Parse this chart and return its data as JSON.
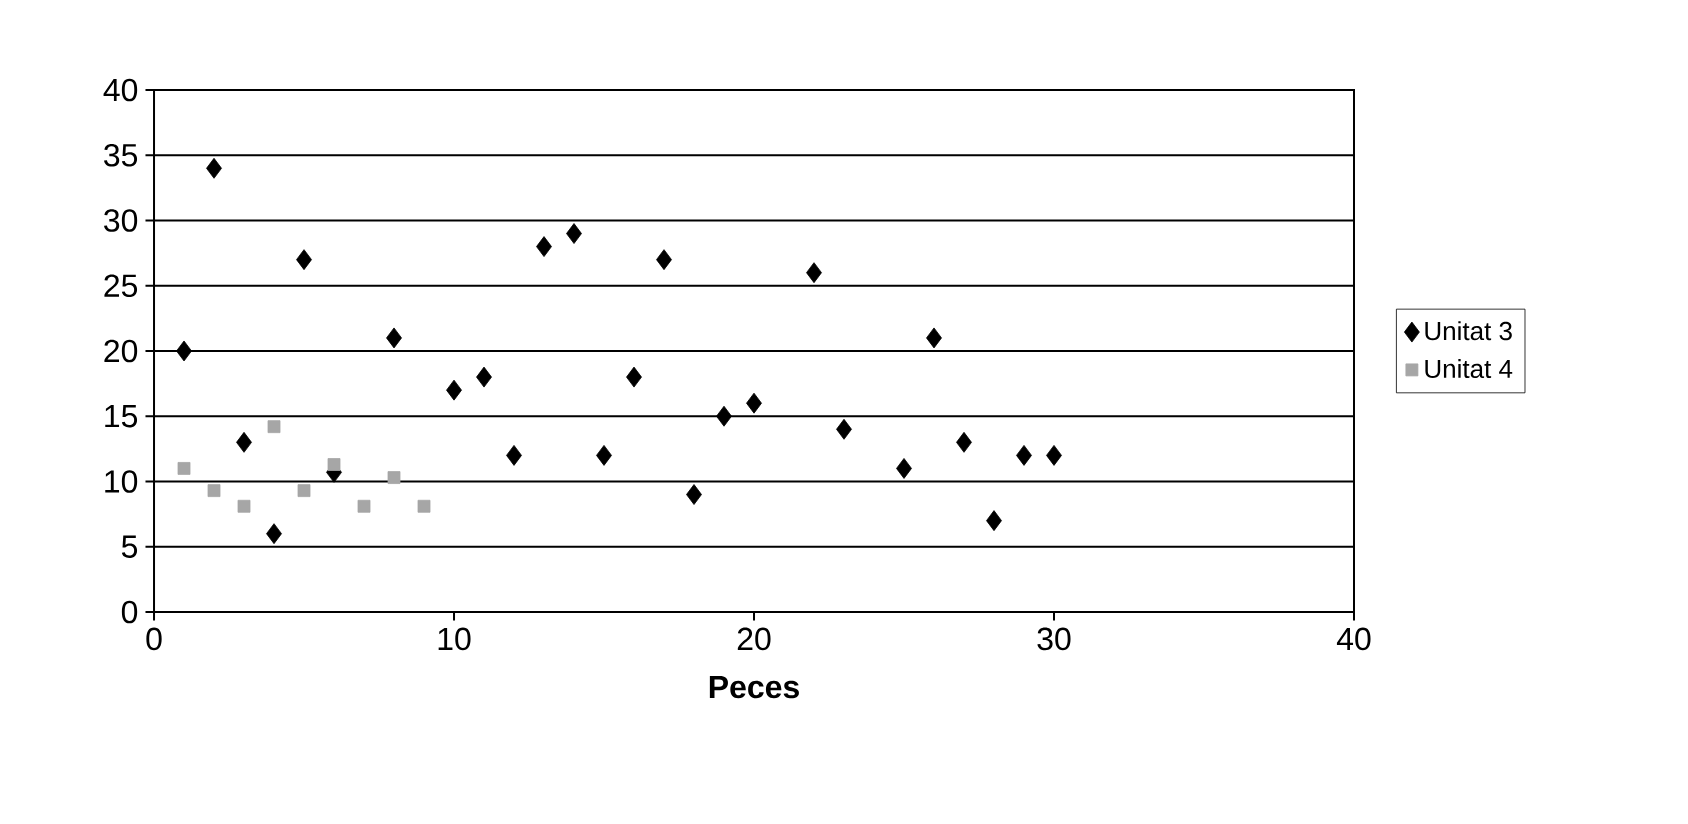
{
  "chart_data": {
    "type": "scatter",
    "xlabel": "Peces",
    "xlim": [
      0,
      40
    ],
    "xticks": [
      0,
      10,
      20,
      30,
      40
    ],
    "ylim": [
      0,
      40
    ],
    "yticks": [
      0,
      5,
      10,
      15,
      20,
      25,
      30,
      35,
      40
    ],
    "grid": "y",
    "legend": "right",
    "series": [
      {
        "name": "Unitat 3",
        "color": "#000000",
        "marker": "diamond",
        "x": [
          1,
          2,
          3,
          4,
          5,
          6,
          8,
          10,
          11,
          12,
          13,
          14,
          15,
          16,
          17,
          18,
          19,
          20,
          22,
          23,
          25,
          26,
          27,
          28,
          29,
          30
        ],
        "values": [
          20,
          34,
          13,
          6,
          27,
          10.7,
          21,
          17,
          18,
          12,
          28,
          29,
          12,
          18,
          27,
          9,
          15,
          16,
          26,
          14,
          11,
          21,
          13,
          7,
          12,
          12
        ]
      },
      {
        "name": "Unitat 4",
        "color": "#a6a6a6",
        "marker": "square",
        "x": [
          1,
          2,
          3,
          4,
          5,
          6,
          7,
          8,
          9
        ],
        "values": [
          11,
          9.3,
          8.1,
          14.2,
          9.3,
          11.3,
          8.1,
          10.3,
          8.1
        ]
      }
    ]
  }
}
